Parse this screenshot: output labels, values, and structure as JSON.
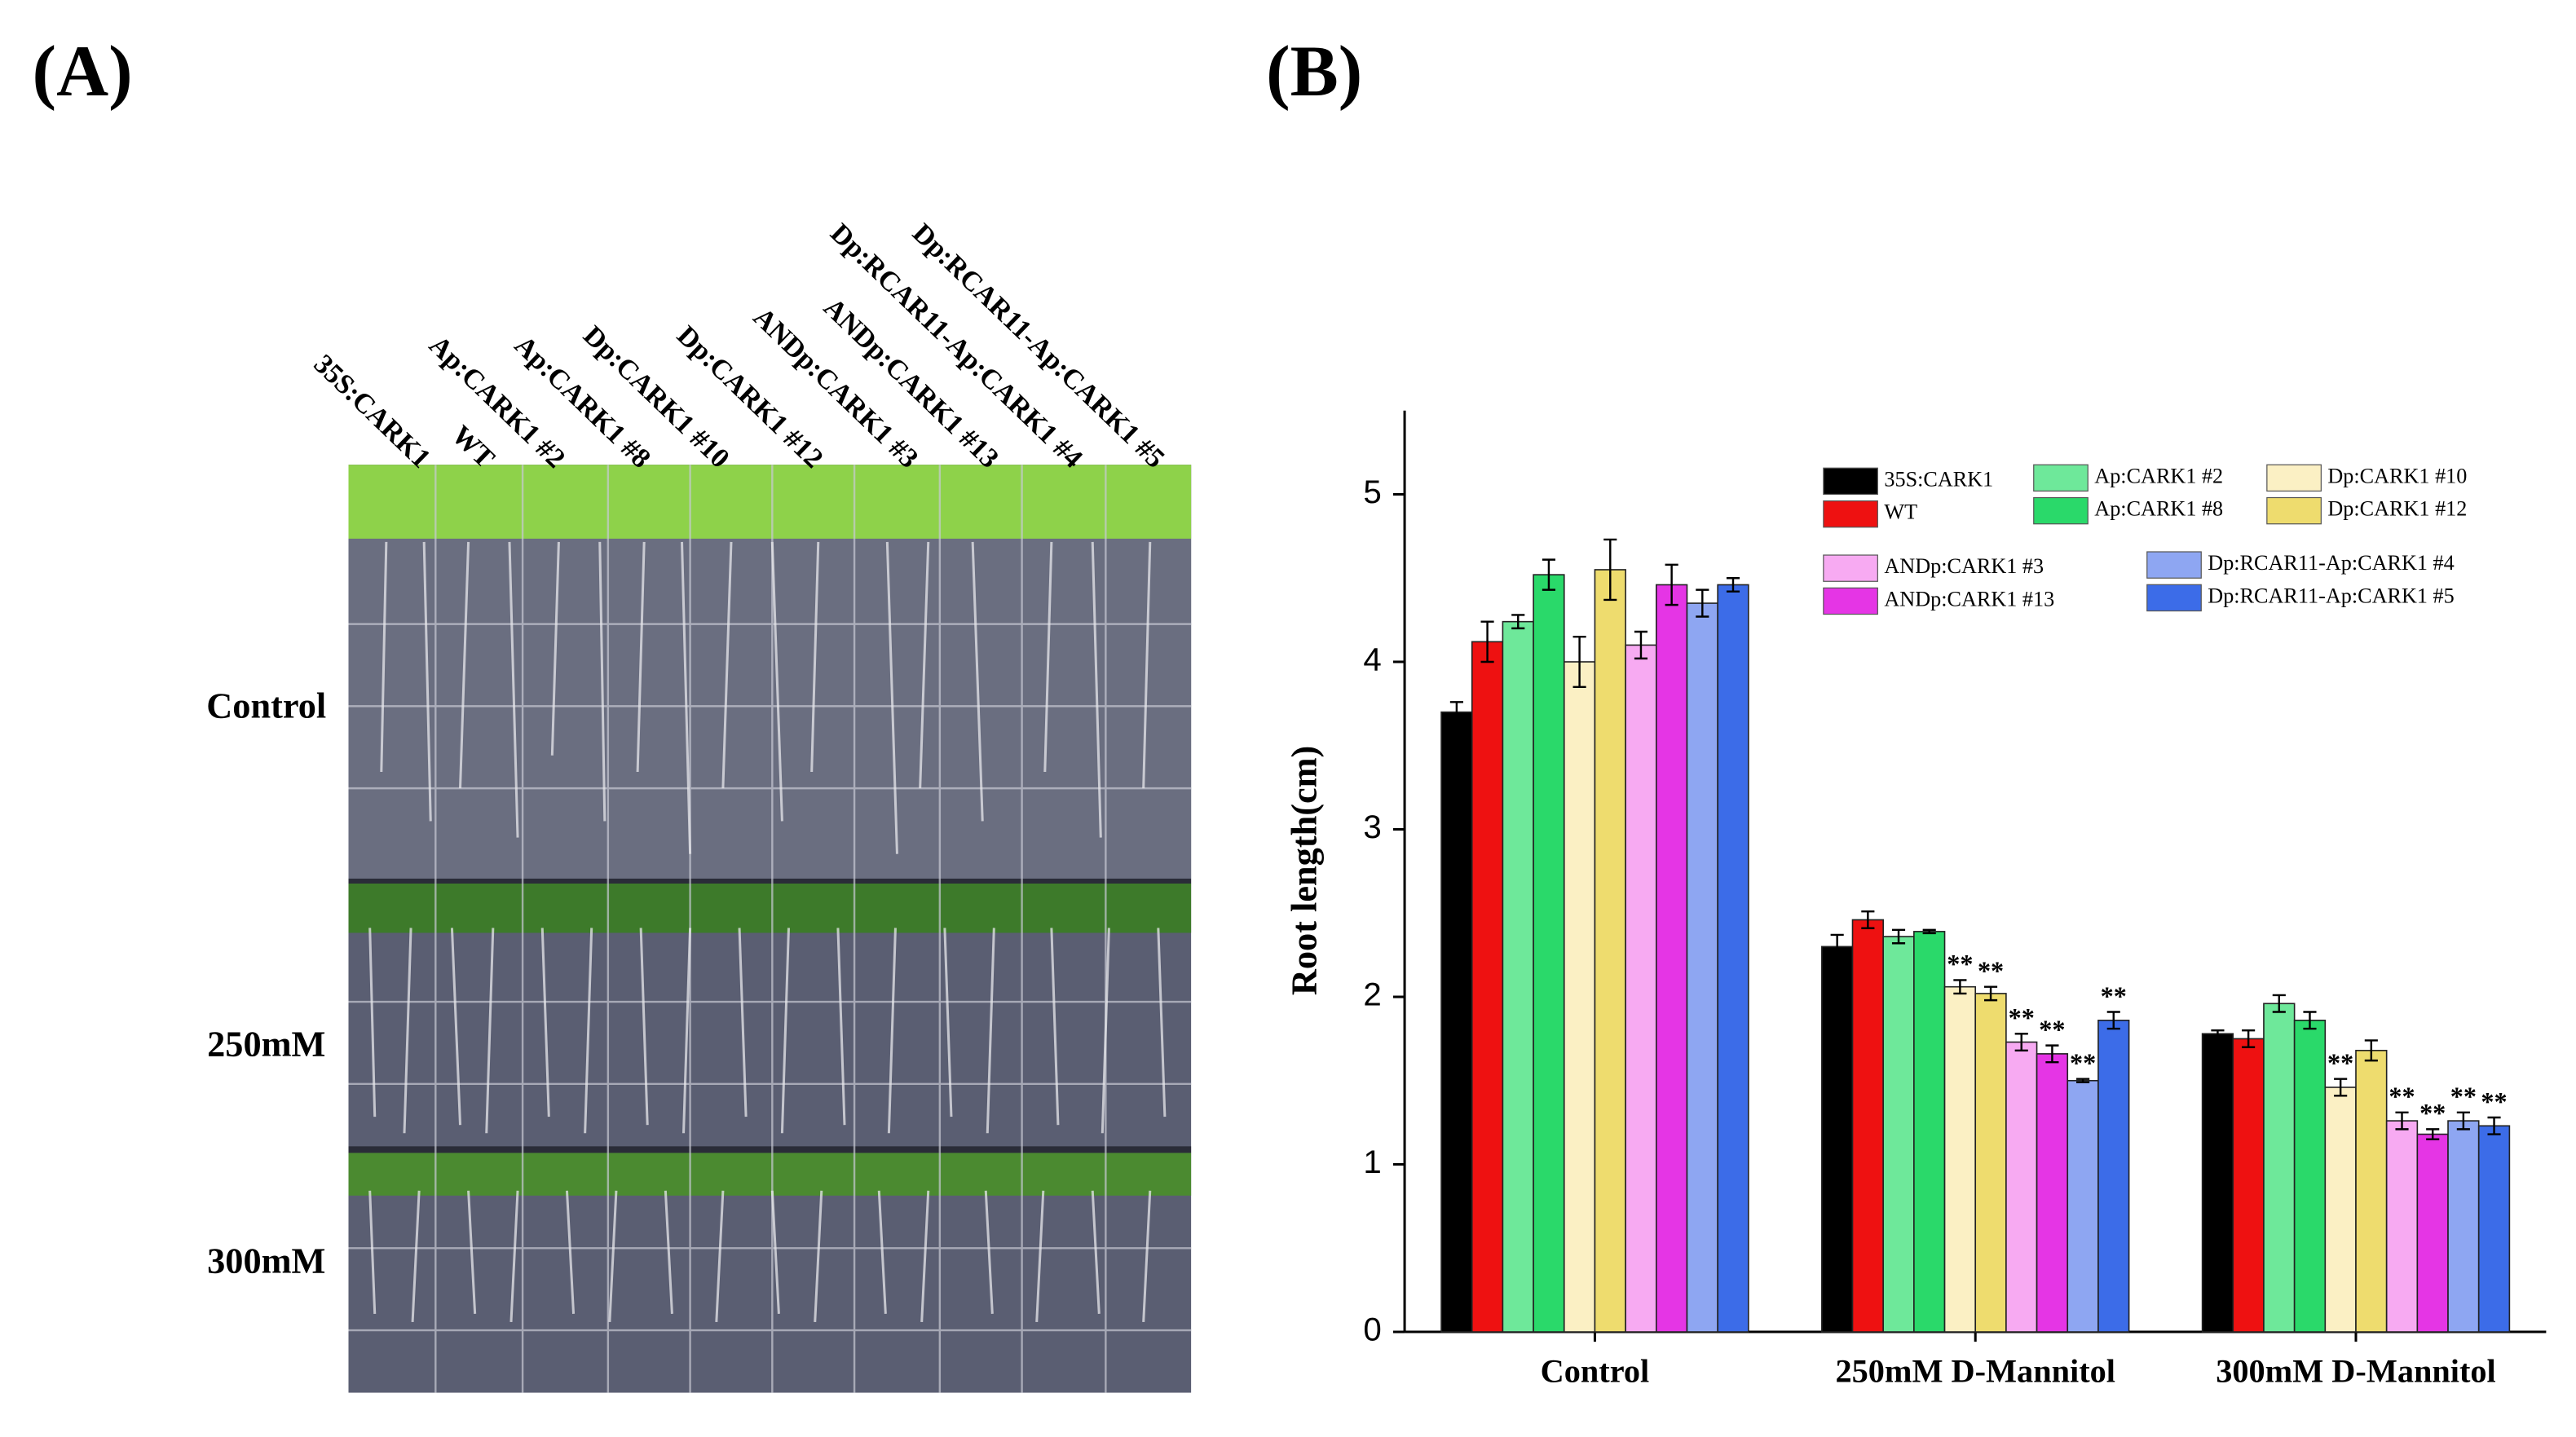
{
  "panel_a": {
    "label": "(A)",
    "genotypes": [
      "35S:CARK1",
      "WT",
      "Ap:CARK1 #2",
      "Ap:CARK1 #8",
      "Dp:CARK1 #10",
      "Dp:CARK1 #12",
      "ANDp:CARK1 #3",
      "ANDp:CARK1 #13",
      "Dp:RCAR11-Ap:CARK1 #4",
      "Dp:RCAR11-Ap:CARK1 #5"
    ],
    "conditions": [
      "Control",
      "250mM",
      "300mM"
    ]
  },
  "chart_data": {
    "type": "bar",
    "panel_label": "(B)",
    "y_label": "Root length(cm)",
    "categories": [
      "Control",
      "250mM D-Mannitol",
      "300mM D-Mannitol"
    ],
    "ylim": [
      0,
      5.5
    ],
    "yticks": [
      0,
      1,
      2,
      3,
      4,
      5
    ],
    "series": [
      {
        "name": "35S:CARK1",
        "color": "#000000",
        "values": [
          3.7,
          2.3,
          1.78
        ],
        "errors": [
          0.06,
          0.07,
          0.02
        ],
        "significance": [
          null,
          null,
          null
        ]
      },
      {
        "name": "WT",
        "color": "#ee1111",
        "values": [
          4.12,
          2.46,
          1.75
        ],
        "errors": [
          0.12,
          0.05,
          0.05
        ],
        "significance": [
          null,
          null,
          null
        ]
      },
      {
        "name": "Ap:CARK1 #2",
        "color": "#6ee89a",
        "values": [
          4.24,
          2.36,
          1.96
        ],
        "errors": [
          0.04,
          0.04,
          0.05
        ],
        "significance": [
          null,
          null,
          null
        ]
      },
      {
        "name": "Ap:CARK1 #8",
        "color": "#2ad96a",
        "values": [
          4.52,
          2.39,
          1.86
        ],
        "errors": [
          0.09,
          0.01,
          0.05
        ],
        "significance": [
          null,
          null,
          null
        ]
      },
      {
        "name": "Dp:CARK1 #10",
        "color": "#fbf0c4",
        "values": [
          4.0,
          2.06,
          1.46
        ],
        "errors": [
          0.15,
          0.04,
          0.05
        ],
        "significance": [
          null,
          "**",
          "**"
        ]
      },
      {
        "name": "Dp:CARK1 #12",
        "color": "#eedc6e",
        "values": [
          4.55,
          2.02,
          1.68
        ],
        "errors": [
          0.18,
          0.04,
          0.06
        ],
        "significance": [
          null,
          "**",
          null
        ]
      },
      {
        "name": "ANDp:CARK1 #3",
        "color": "#f7aaf2",
        "values": [
          4.1,
          1.73,
          1.26
        ],
        "errors": [
          0.08,
          0.05,
          0.05
        ],
        "significance": [
          null,
          "**",
          "**"
        ]
      },
      {
        "name": "ANDp:CARK1 #13",
        "color": "#e535e5",
        "values": [
          4.46,
          1.66,
          1.18
        ],
        "errors": [
          0.12,
          0.05,
          0.03
        ],
        "significance": [
          null,
          "**",
          "**"
        ]
      },
      {
        "name": "Dp:RCAR11-Ap:CARK1 #4",
        "color": "#8ea6f2",
        "values": [
          4.35,
          1.5,
          1.26
        ],
        "errors": [
          0.08,
          0.01,
          0.05
        ],
        "significance": [
          null,
          "**",
          "**"
        ]
      },
      {
        "name": "Dp:RCAR11-Ap:CARK1 #5",
        "color": "#3c6ce8",
        "values": [
          4.46,
          1.86,
          1.23
        ],
        "errors": [
          0.04,
          0.05,
          0.05
        ],
        "significance": [
          null,
          "**",
          "**"
        ]
      }
    ]
  }
}
